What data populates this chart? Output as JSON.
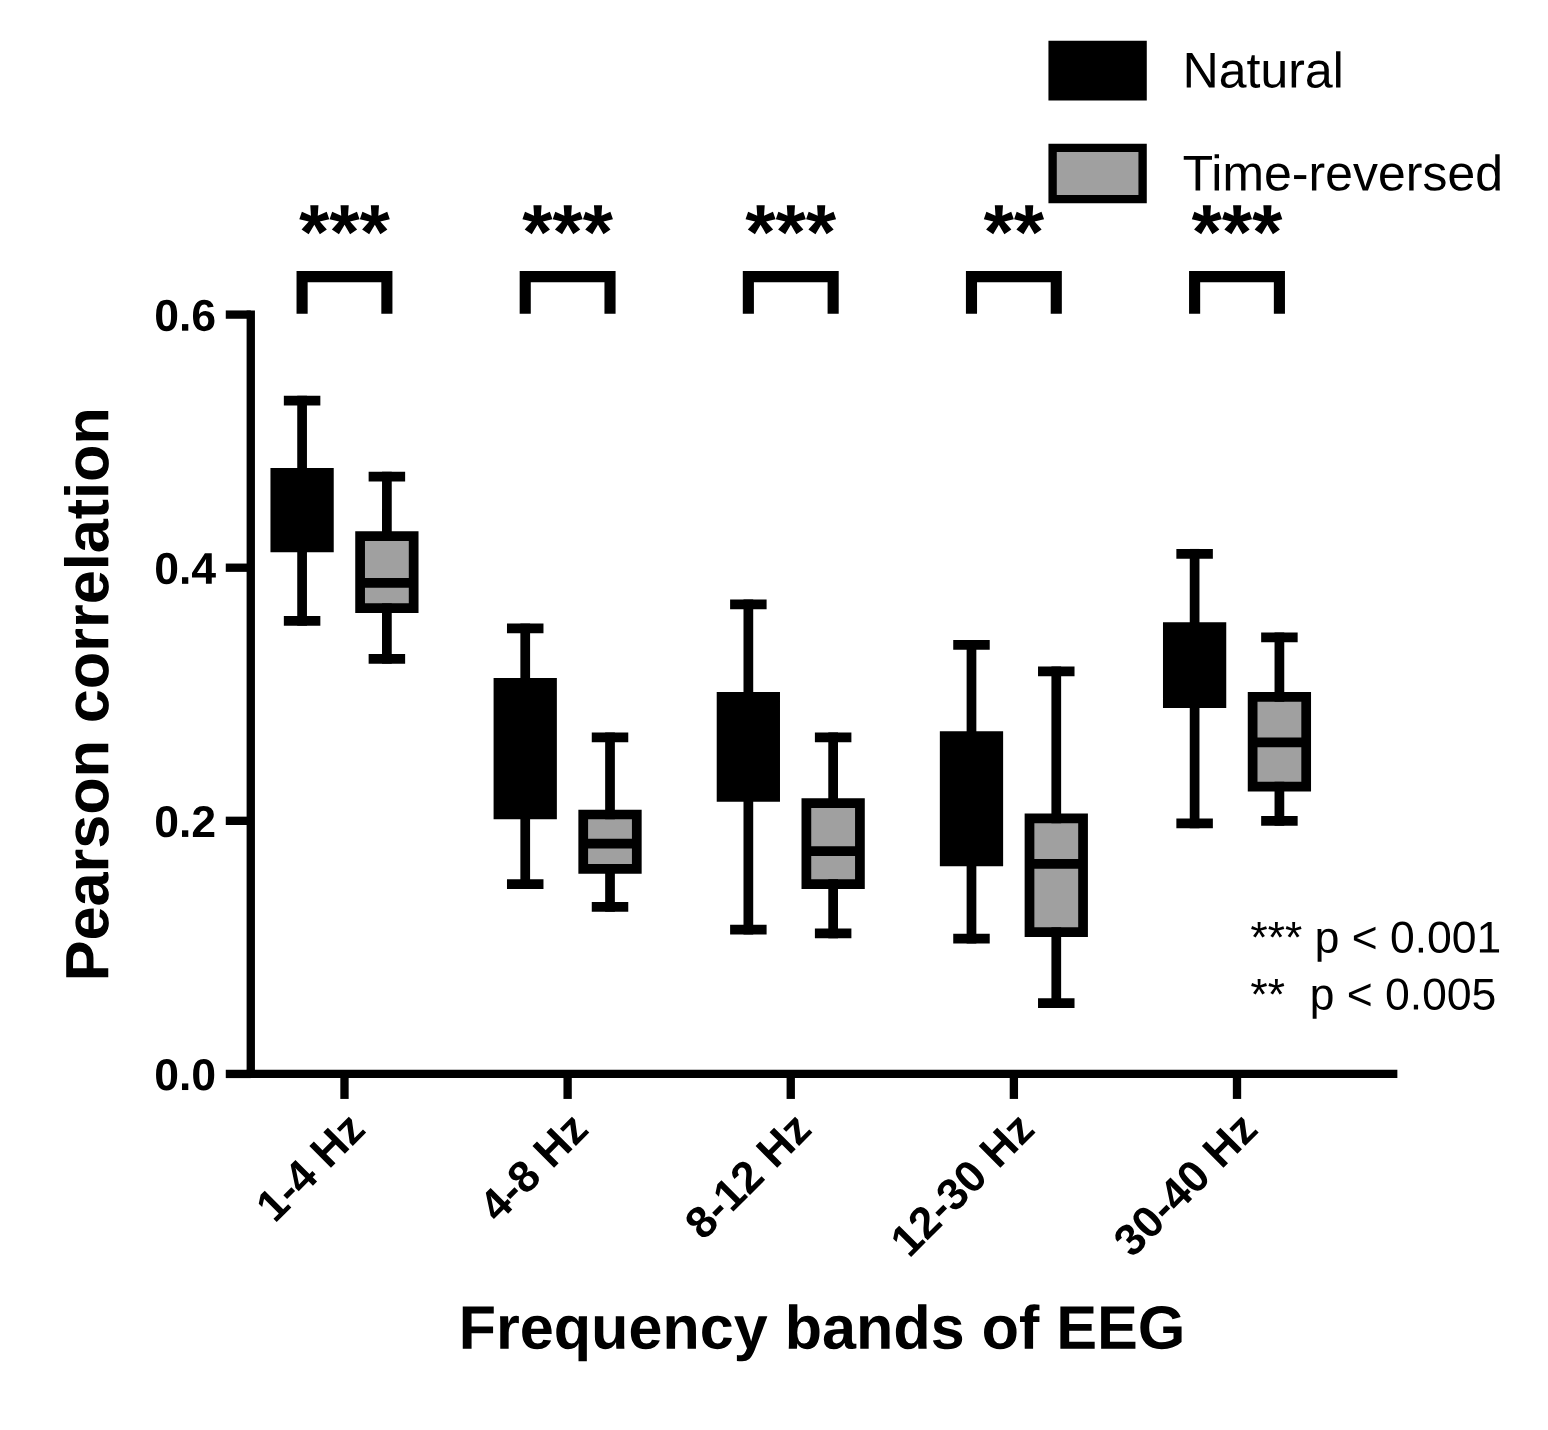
{
  "chart_data": {
    "type": "box",
    "xlabel": "Frequency bands of EEG",
    "ylabel": "Pearson correlation",
    "categories": [
      "1-4 Hz",
      "4-8 Hz",
      "8-12 Hz",
      "12-30 Hz",
      "30-40 Hz"
    ],
    "series": [
      {
        "name": "Natural",
        "color": "#000000",
        "boxes": [
          {
            "low": 0.358,
            "q1": 0.416,
            "median": 0.441,
            "q3": 0.475,
            "high": 0.532
          },
          {
            "low": 0.15,
            "q1": 0.205,
            "median": 0.255,
            "q3": 0.309,
            "high": 0.352
          },
          {
            "low": 0.114,
            "q1": 0.219,
            "median": 0.255,
            "q3": 0.298,
            "high": 0.371
          },
          {
            "low": 0.107,
            "q1": 0.168,
            "median": 0.21,
            "q3": 0.267,
            "high": 0.339
          },
          {
            "low": 0.198,
            "q1": 0.293,
            "median": 0.32,
            "q3": 0.353,
            "high": 0.411
          }
        ]
      },
      {
        "name": "Time-reversed",
        "color": "#a0a0a0",
        "boxes": [
          {
            "low": 0.328,
            "q1": 0.368,
            "median": 0.388,
            "q3": 0.425,
            "high": 0.472
          },
          {
            "low": 0.132,
            "q1": 0.162,
            "median": 0.182,
            "q3": 0.205,
            "high": 0.266
          },
          {
            "low": 0.111,
            "q1": 0.15,
            "median": 0.176,
            "q3": 0.214,
            "high": 0.266
          },
          {
            "low": 0.056,
            "q1": 0.112,
            "median": 0.166,
            "q3": 0.202,
            "high": 0.318
          },
          {
            "low": 0.2,
            "q1": 0.227,
            "median": 0.262,
            "q3": 0.298,
            "high": 0.345
          }
        ]
      }
    ],
    "ylim": [
      0,
      0.6
    ],
    "yticks": [
      {
        "value": 0,
        "label": "0.0"
      },
      {
        "value": 0.2,
        "label": "0.2"
      },
      {
        "value": 0.4,
        "label": "0.4"
      },
      {
        "value": 0.6,
        "label": "0.6"
      }
    ],
    "grid": false,
    "legend": "top right",
    "annotations": [
      "***",
      "***",
      "***",
      "**",
      "***",
      "*** p < 0.001",
      "**  p < 0.005"
    ]
  }
}
